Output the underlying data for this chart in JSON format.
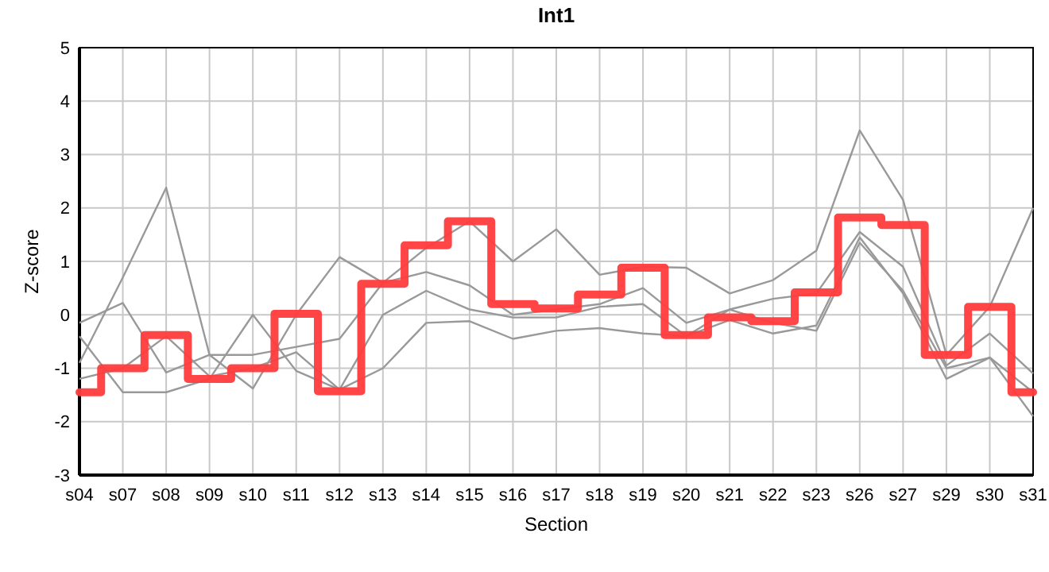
{
  "chart_data": {
    "type": "line",
    "title": "Int1",
    "xlabel": "Section",
    "ylabel": "Z-score",
    "categories": [
      "s04",
      "s07",
      "s08",
      "s09",
      "s10",
      "s11",
      "s12",
      "s13",
      "s14",
      "s15",
      "s16",
      "s17",
      "s18",
      "s19",
      "s20",
      "s21",
      "s22",
      "s23",
      "s26",
      "s27",
      "s29",
      "s30",
      "s31"
    ],
    "ylim": [
      -3,
      5
    ],
    "yticks": [
      -3,
      -2,
      -1,
      0,
      1,
      2,
      3,
      4,
      5
    ],
    "grid": true,
    "series": [
      {
        "color": "#999999",
        "values": [
          -0.9,
          0.7,
          2.38,
          -0.75,
          -1.38,
          0.0,
          1.08,
          0.6,
          1.25,
          1.75,
          1.0,
          1.6,
          0.75,
          0.9,
          0.88,
          0.4,
          0.65,
          1.2,
          3.45,
          2.15,
          -0.75,
          0.15,
          2.0
        ]
      },
      {
        "color": "#999999",
        "values": [
          -0.15,
          0.22,
          -1.08,
          -0.75,
          -0.75,
          -0.6,
          -0.45,
          0.6,
          0.8,
          0.55,
          0.0,
          0.1,
          0.2,
          0.5,
          -0.15,
          0.1,
          0.3,
          0.4,
          1.55,
          0.9,
          -0.95,
          -0.35,
          -1.1
        ]
      },
      {
        "color": "#999999",
        "values": [
          -0.4,
          -1.45,
          -1.45,
          -1.2,
          -0.0,
          -1.05,
          -1.4,
          0.0,
          0.45,
          0.1,
          -0.05,
          -0.05,
          0.15,
          0.2,
          -0.4,
          0.1,
          -0.15,
          -0.3,
          1.35,
          0.45,
          -1.0,
          -0.8,
          -1.45
        ]
      },
      {
        "color": "#999999",
        "values": [
          -1.2,
          -1.0,
          -0.4,
          -1.15,
          -1.0,
          -0.7,
          -1.4,
          -1.0,
          -0.15,
          -0.12,
          -0.45,
          -0.3,
          -0.25,
          -0.35,
          -0.4,
          -0.1,
          -0.35,
          -0.2,
          1.45,
          0.4,
          -1.2,
          -0.8,
          -1.9
        ]
      },
      {
        "type": "step",
        "color": "#ff3b3b",
        "values": [
          -1.45,
          -1.0,
          -0.38,
          -1.2,
          -1.0,
          0.02,
          -1.43,
          0.58,
          1.3,
          1.75,
          0.2,
          0.12,
          0.38,
          0.88,
          -0.38,
          -0.05,
          -0.12,
          0.42,
          1.82,
          1.68,
          -0.75,
          0.15,
          -1.45
        ]
      }
    ]
  }
}
